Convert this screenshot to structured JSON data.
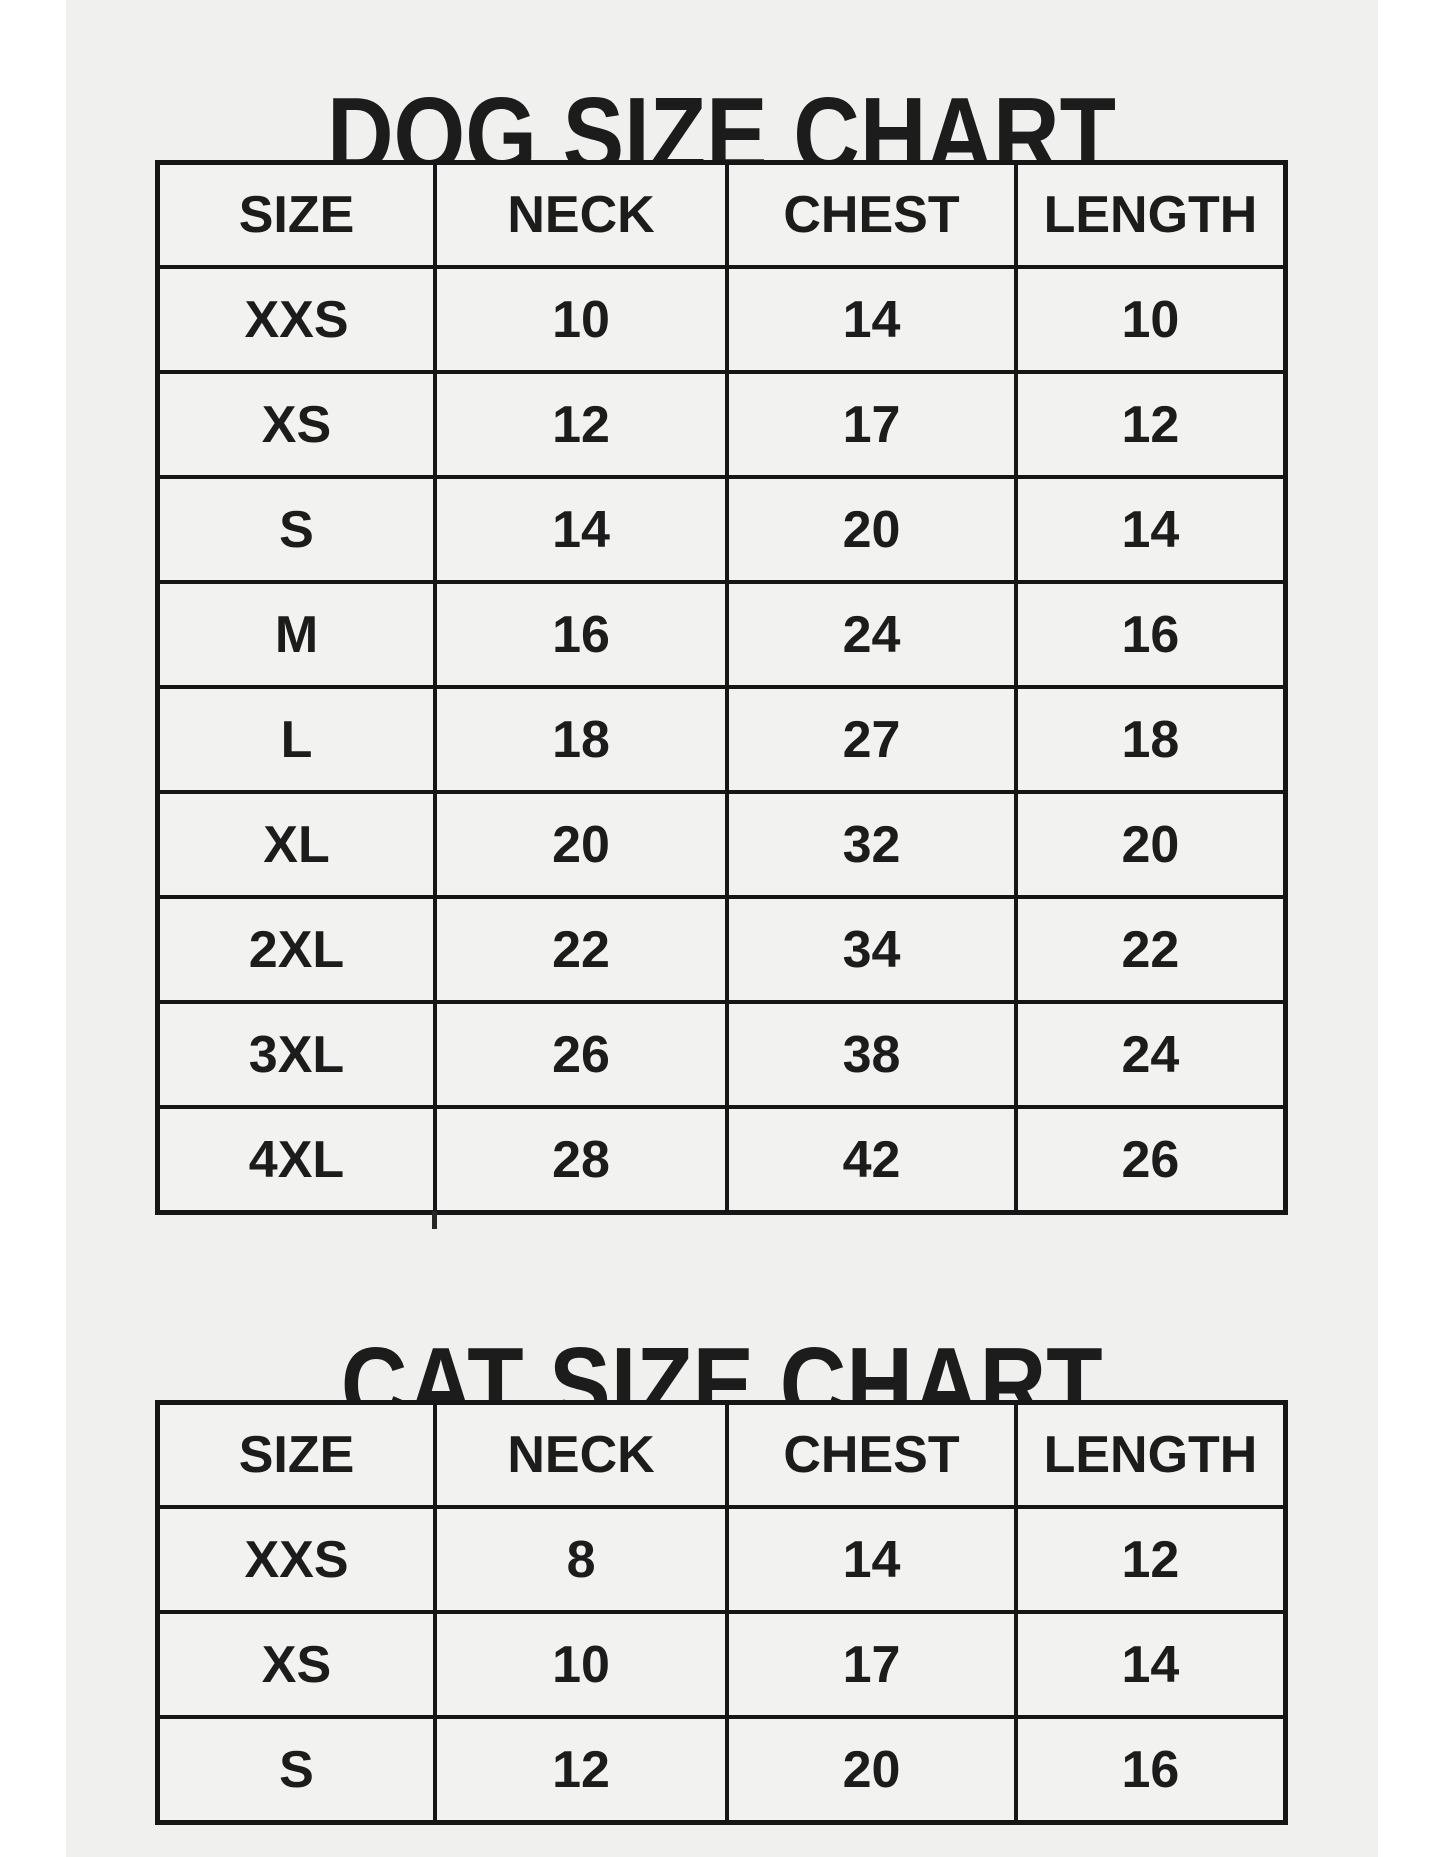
{
  "page": {
    "background": "#f0f0ee",
    "margin_color": "#ffffff",
    "grid_color": "#161616",
    "text_color": "#1c1c1c"
  },
  "chart_data": [
    {
      "type": "table",
      "title": "DOG SIZE CHART",
      "columns": [
        "SIZE",
        "NECK",
        "CHEST",
        "LENGTH"
      ],
      "rows": [
        [
          "XXS",
          "10",
          "14",
          "10"
        ],
        [
          "XS",
          "12",
          "17",
          "12"
        ],
        [
          "S",
          "14",
          "20",
          "14"
        ],
        [
          "M",
          "16",
          "24",
          "16"
        ],
        [
          "L",
          "18",
          "27",
          "18"
        ],
        [
          "XL",
          "20",
          "32",
          "20"
        ],
        [
          "2XL",
          "22",
          "34",
          "22"
        ],
        [
          "3XL",
          "26",
          "38",
          "24"
        ],
        [
          "4XL",
          "28",
          "42",
          "26"
        ]
      ]
    },
    {
      "type": "table",
      "title": "CAT SIZE CHART",
      "columns": [
        "SIZE",
        "NECK",
        "CHEST",
        "LENGTH"
      ],
      "rows": [
        [
          "XXS",
          "8",
          "14",
          "12"
        ],
        [
          "XS",
          "10",
          "17",
          "14"
        ],
        [
          "S",
          "12",
          "20",
          "16"
        ]
      ]
    }
  ]
}
